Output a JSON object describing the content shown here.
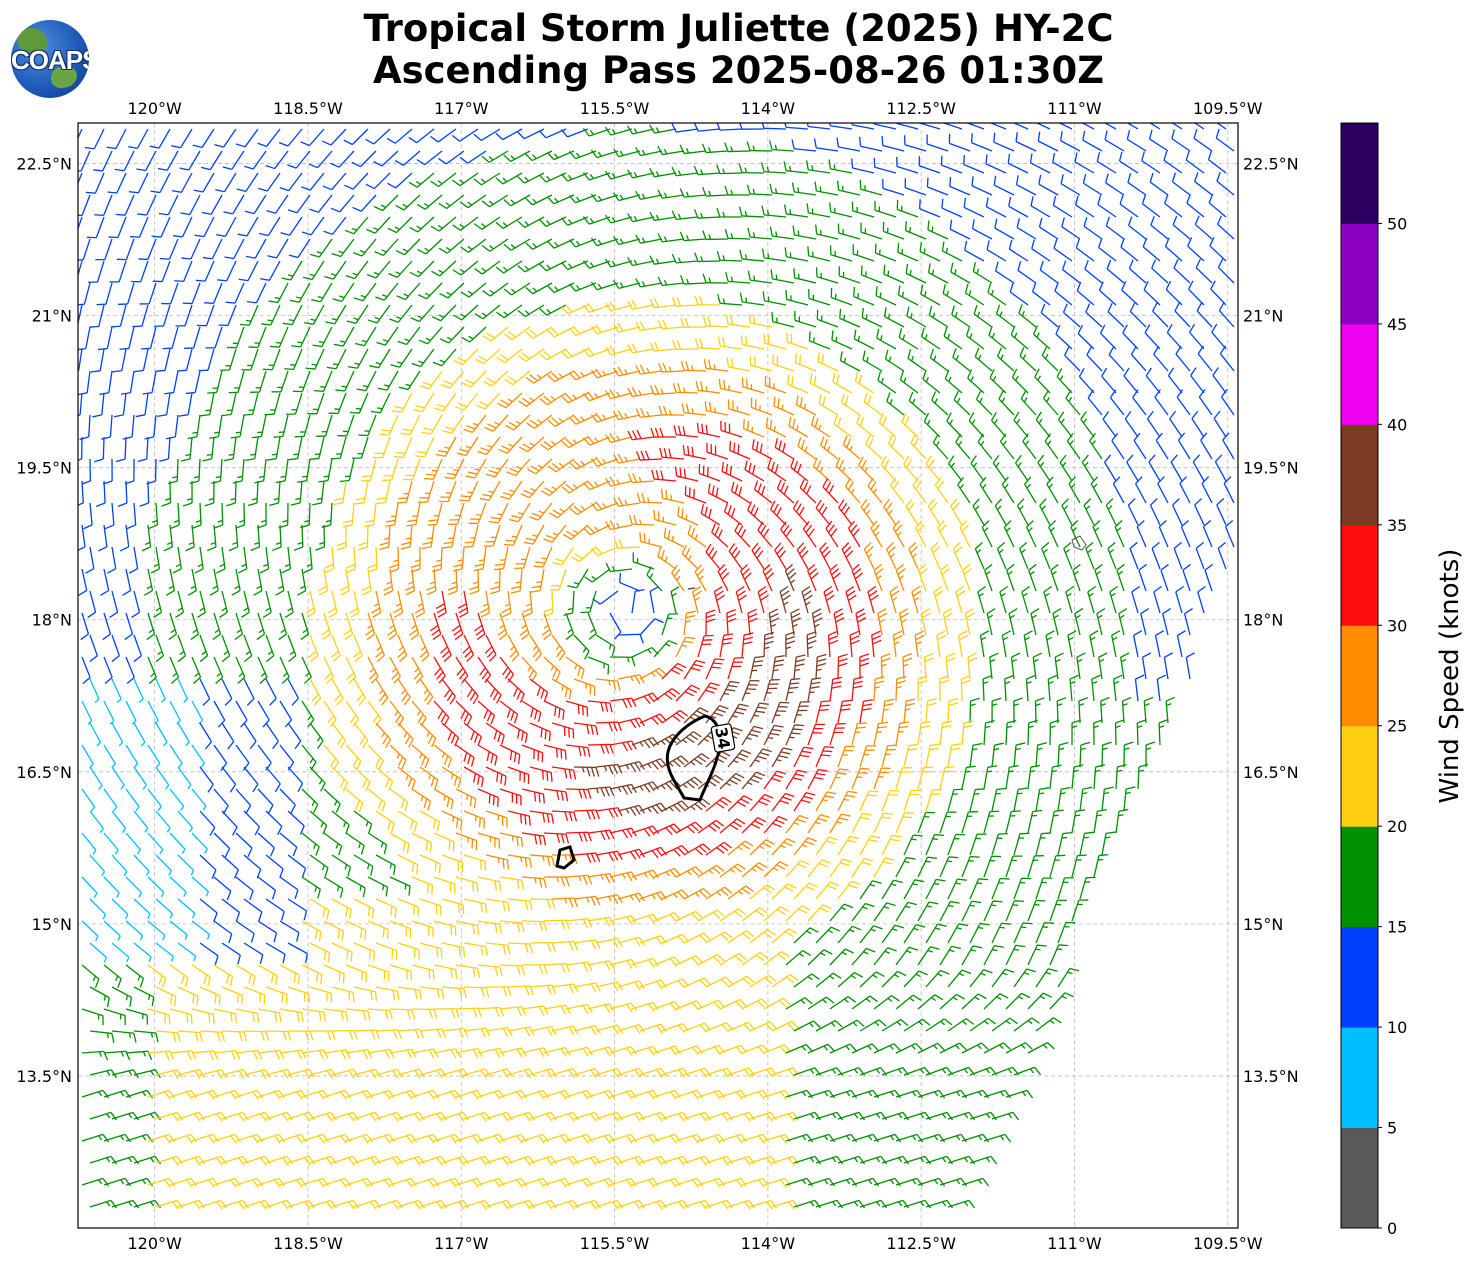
{
  "title_line1": "Tropical Storm Juliette (2025) HY-2C",
  "title_line2": "Ascending Pass 2025-08-26 01:30Z",
  "logo_text": "COAPS",
  "lon_ticks": [
    "120°W",
    "118.5°W",
    "117°W",
    "115.5°W",
    "114°W",
    "112.5°W",
    "111°W",
    "109.5°W"
  ],
  "lat_ticks": [
    "22.5°N",
    "21°N",
    "19.5°N",
    "18°N",
    "16.5°N",
    "15°N",
    "13.5°N"
  ],
  "colorbar": {
    "label": "Wind Speed (knots)",
    "tick_labels": [
      "0",
      "5",
      "10",
      "15",
      "20",
      "25",
      "30",
      "35",
      "40",
      "45",
      "50"
    ],
    "colors": [
      "#595959",
      "#00bfff",
      "#0040ff",
      "#009000",
      "#ffd010",
      "#ff8c00",
      "#ff0e0e",
      "#7d3b24",
      "#f000f0",
      "#8b00c0",
      "#2a0060"
    ]
  },
  "contour_label": "34",
  "storm_center": {
    "lon": -115.4,
    "lat": 18.1
  },
  "chart_data": {
    "type": "wind_barb_map",
    "title": "Tropical Storm Juliette (2025) HY-2C",
    "subtitle": "Ascending Pass 2025-08-26 01:30Z",
    "lon_range": [
      -120.75,
      -109.4
    ],
    "lat_range": [
      12.0,
      22.9
    ],
    "wind_speed_bins_knots": [
      0,
      5,
      10,
      15,
      20,
      25,
      30,
      35,
      40,
      45,
      50
    ],
    "contour_levels": [
      34
    ],
    "colorbar_label": "Wind Speed (knots)"
  }
}
